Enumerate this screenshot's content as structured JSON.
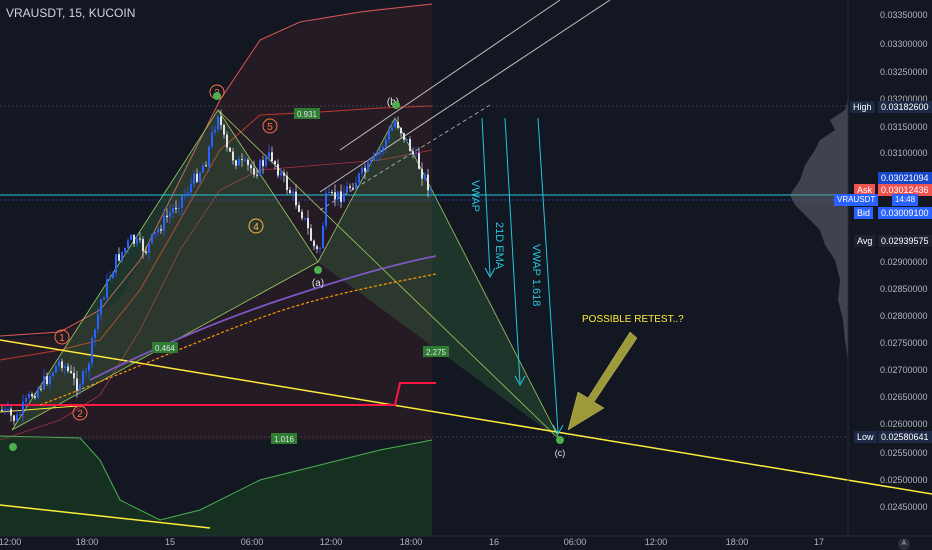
{
  "header": {
    "symbol": "VRAUSDT, 15, KUCOIN"
  },
  "price_axis": {
    "labels": [
      "0.03350000",
      "0.03300000",
      "0.03250000",
      "0.03200000",
      "0.03150000",
      "0.03100000",
      "0.02900000",
      "0.02850000",
      "0.02800000",
      "0.02750000",
      "0.02700000",
      "0.02650000",
      "0.02600000",
      "0.02550000",
      "0.02500000",
      "0.02450000"
    ],
    "high": {
      "label": "High",
      "value": "0.03182600"
    },
    "price_tag": "0.03021094",
    "ask": {
      "label": "Ask",
      "value": "0.03012436"
    },
    "last": {
      "label": "VRAUSDT",
      "value": "14:48"
    },
    "bid": {
      "label": "Bid",
      "value": "0.03009100"
    },
    "avg": {
      "label": "Avg",
      "value": "0.02939575"
    },
    "low": {
      "label": "Low",
      "value": "0.02580641"
    }
  },
  "time_axis": {
    "labels": [
      "12:00",
      "18:00",
      "15",
      "06:00",
      "12:00",
      "18:00",
      "16",
      "06:00",
      "12:00",
      "18:00",
      "17"
    ]
  },
  "annotations": {
    "waves": [
      "1",
      "2",
      "3",
      "4",
      "5"
    ],
    "wave_abc": [
      "(a)",
      "(b)",
      "(c)"
    ],
    "ratios": [
      "0.931",
      "0.464",
      "2.275",
      "1.016"
    ],
    "vwap": "VWAP",
    "ema": "21D EMA",
    "vwap_fib": "VWAP 1.618",
    "retest": "POSSIBLE RETEST..?"
  },
  "colors": {
    "background": "#131722",
    "up_candle": "#2962ff",
    "down_candle": "#e0e3eb",
    "pattern_green": "#4caf50",
    "trend_yellow": "#ffeb3b",
    "support_red": "#ff0000",
    "ema_orange": "#ff9800",
    "vwap_purple": "#7e57c2",
    "cyan": "#26c6da",
    "arrow_olive": "#9e9a3a"
  },
  "icons": {
    "settings": "auto-scale-icon"
  }
}
